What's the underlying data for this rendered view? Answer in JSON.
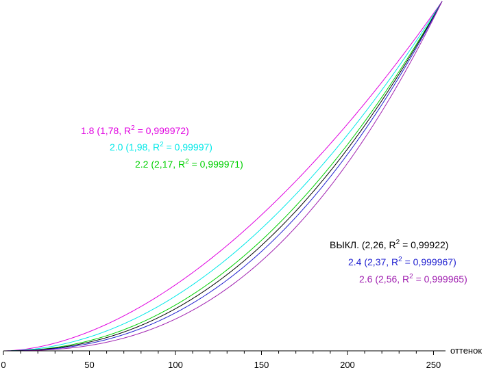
{
  "chart_data": {
    "type": "line",
    "x_label": "оттенок",
    "xlim": [
      0,
      255
    ],
    "ylim": [
      0,
      1
    ],
    "x_ticks": [
      0,
      50,
      100,
      150,
      200,
      250
    ],
    "grid": false,
    "series": [
      {
        "name": "1.8 (1,78, R² = 0,999972)",
        "label_main": "1.8 (1,78, R",
        "label_sup": "2",
        "label_tail": " = 0,999972)",
        "gamma": 1.78,
        "color": "#e000e0"
      },
      {
        "name": "2.0 (1,98, R² = 0,99997)",
        "label_main": "2.0 (1,98, R",
        "label_sup": "2",
        "label_tail": " = 0,99997)",
        "gamma": 1.98,
        "color": "#00e8e8"
      },
      {
        "name": "2.2 (2,17, R² = 0,999971)",
        "label_main": "2.2 (2,17, R",
        "label_sup": "2",
        "label_tail": " = 0,999971)",
        "gamma": 2.17,
        "color": "#00d000"
      },
      {
        "name": "ВЫКЛ. (2,26, R² = 0,99922)",
        "label_main": "ВЫКЛ. (2,26, R",
        "label_sup": "2",
        "label_tail": " = 0,99922)",
        "gamma": 2.26,
        "color": "#000000"
      },
      {
        "name": "2.4 (2,37, R² = 0,999967)",
        "label_main": "2.4 (2,37, R",
        "label_sup": "2",
        "label_tail": " = 0,999967)",
        "gamma": 2.37,
        "color": "#2020d0"
      },
      {
        "name": "2.6 (2,56, R² = 0,999965)",
        "label_main": "2.6 (2,56, R",
        "label_sup": "2",
        "label_tail": " = 0,999965)",
        "gamma": 2.56,
        "color": "#a020b0"
      }
    ]
  }
}
